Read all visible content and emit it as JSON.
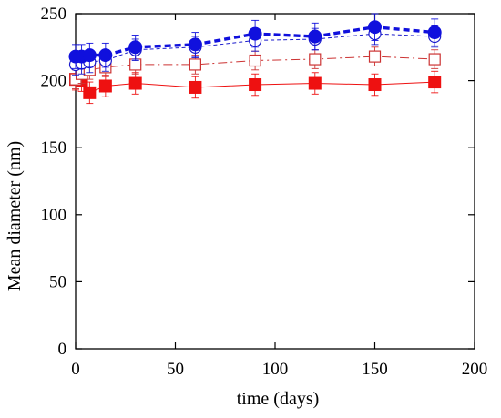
{
  "chart_data": {
    "type": "line",
    "title": "",
    "xlabel": "time (days)",
    "ylabel": "Mean diameter (nm)",
    "xlim": [
      0,
      200
    ],
    "ylim": [
      0,
      250
    ],
    "xticks": [
      0,
      50,
      100,
      150,
      200
    ],
    "yticks": [
      0,
      50,
      100,
      150,
      200,
      250
    ],
    "grid": false,
    "legend": "none",
    "series": [
      {
        "marker": "filled-circle",
        "color": "#1010dd",
        "line": "bold-dashed",
        "x": [
          0,
          3,
          7,
          15,
          30,
          60,
          90,
          120,
          150,
          180
        ],
        "y": [
          218,
          218,
          219,
          219,
          225,
          227,
          235,
          233,
          240,
          236
        ],
        "err": [
          9,
          9,
          9,
          9,
          9,
          9,
          10,
          10,
          10,
          10
        ]
      },
      {
        "marker": "open-circle",
        "color": "#1a1acc",
        "line": "thin-dashed",
        "x": [
          0,
          3,
          7,
          15,
          30,
          60,
          90,
          120,
          150,
          180
        ],
        "y": [
          212,
          213,
          214,
          215,
          223,
          225,
          230,
          231,
          235,
          233
        ],
        "err": [
          8,
          8,
          8,
          8,
          8,
          8,
          8,
          8,
          8,
          8
        ]
      },
      {
        "marker": "open-square",
        "color": "#cc3333",
        "line": "dash-dot",
        "x": [
          0,
          3,
          7,
          15,
          30,
          60,
          90,
          120,
          150,
          180
        ],
        "y": [
          201,
          205,
          208,
          210,
          212,
          212,
          215,
          216,
          218,
          216
        ],
        "err": [
          7,
          7,
          7,
          7,
          7,
          7,
          7,
          7,
          7,
          7
        ]
      },
      {
        "marker": "filled-square",
        "color": "#ee1111",
        "line": "solid-thin",
        "x": [
          0,
          3,
          7,
          15,
          30,
          60,
          90,
          120,
          150,
          180
        ],
        "y": [
          201,
          200,
          191,
          196,
          198,
          195,
          197,
          198,
          197,
          199
        ],
        "err": [
          8,
          8,
          8,
          8,
          8,
          8,
          8,
          8,
          8,
          8
        ]
      }
    ]
  }
}
